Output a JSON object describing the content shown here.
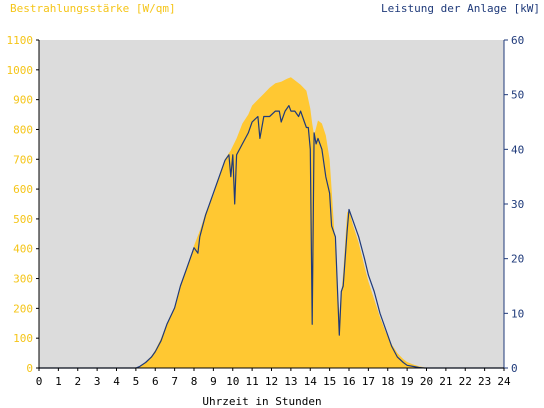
{
  "chart_data": {
    "type": "area",
    "title_left": "Bestrahlungsstärke [W/qm]",
    "title_right": "Leistung der Anlage [kW]",
    "xlabel": "Uhrzeit in Stunden",
    "xlim": [
      0,
      24
    ],
    "x_ticks": [
      "0",
      "1",
      "2",
      "3",
      "4",
      "5",
      "6",
      "7",
      "8",
      "9",
      "10",
      "11",
      "12",
      "13",
      "14",
      "15",
      "16",
      "17",
      "18",
      "19",
      "20",
      "21",
      "22",
      "23",
      "24"
    ],
    "y_left": {
      "lim": [
        0,
        1100
      ],
      "ticks": [
        "0",
        "100",
        "200",
        "300",
        "400",
        "500",
        "600",
        "700",
        "800",
        "900",
        "1000",
        "1100"
      ]
    },
    "y_right": {
      "lim": [
        0,
        60
      ],
      "ticks": [
        "0",
        "10",
        "20",
        "30",
        "40",
        "50",
        "60"
      ]
    },
    "grid": false,
    "colors": {
      "plot_bg": "#dcdcdc",
      "irradiance": "#ffc832",
      "power": "#1f3a7a",
      "left_axis_text": "#f5c518",
      "right_axis_text": "#1f3a7a"
    },
    "series": [
      {
        "axis": "left",
        "style": "filled-area",
        "x": [
          0,
          5.0,
          5.2,
          5.5,
          5.8,
          6.0,
          6.3,
          6.6,
          7.0,
          7.3,
          7.6,
          8.0,
          8.3,
          8.6,
          9.0,
          9.3,
          9.6,
          9.9,
          10.2,
          10.5,
          10.8,
          11.0,
          11.3,
          11.6,
          11.9,
          12.2,
          12.5,
          12.8,
          13.0,
          13.2,
          13.5,
          13.8,
          14.0,
          14.1,
          14.2,
          14.4,
          14.6,
          14.8,
          15.0,
          15.1,
          15.3,
          15.5,
          15.7,
          15.9,
          16.0,
          16.2,
          16.5,
          16.8,
          17.0,
          17.3,
          17.6,
          17.9,
          18.2,
          18.5,
          18.8,
          19.0,
          19.3,
          19.6,
          19.9,
          20.1,
          24
        ],
        "y": [
          0,
          0,
          5,
          20,
          40,
          60,
          100,
          150,
          200,
          270,
          330,
          410,
          460,
          520,
          580,
          640,
          700,
          730,
          770,
          820,
          850,
          880,
          900,
          920,
          940,
          955,
          960,
          970,
          975,
          965,
          950,
          930,
          870,
          820,
          780,
          830,
          820,
          780,
          700,
          600,
          400,
          180,
          320,
          520,
          530,
          480,
          420,
          340,
          290,
          230,
          170,
          120,
          80,
          50,
          30,
          20,
          12,
          6,
          2,
          0,
          0
        ]
      },
      {
        "axis": "right",
        "style": "line",
        "x": [
          0,
          5.0,
          5.2,
          5.5,
          5.8,
          6.0,
          6.3,
          6.6,
          7.0,
          7.3,
          7.6,
          8.0,
          8.2,
          8.3,
          8.6,
          9.0,
          9.3,
          9.6,
          9.8,
          9.9,
          10.0,
          10.1,
          10.2,
          10.5,
          10.8,
          11.0,
          11.3,
          11.4,
          11.6,
          11.9,
          12.2,
          12.4,
          12.5,
          12.7,
          12.9,
          13.0,
          13.2,
          13.4,
          13.5,
          13.6,
          13.7,
          13.8,
          13.9,
          14.0,
          14.1,
          14.2,
          14.3,
          14.4,
          14.6,
          14.8,
          15.0,
          15.1,
          15.3,
          15.5,
          15.6,
          15.7,
          15.9,
          16.0,
          16.2,
          16.5,
          16.8,
          17.0,
          17.3,
          17.6,
          17.9,
          18.2,
          18.5,
          18.8,
          19.0,
          19.3,
          19.6,
          19.9,
          20.1,
          24
        ],
        "y": [
          0,
          0,
          0.3,
          1,
          2,
          3,
          5,
          8,
          11,
          15,
          18,
          22,
          21,
          24,
          28,
          32,
          35,
          38,
          39,
          35,
          39,
          30,
          39,
          41,
          43,
          45,
          46,
          42,
          46,
          46,
          47,
          47,
          45,
          47,
          48,
          47,
          47,
          46,
          47,
          46,
          45,
          44,
          44,
          40,
          8,
          43,
          41,
          42,
          40,
          35,
          32,
          26,
          24,
          6,
          14,
          15,
          25,
          29,
          27,
          24,
          20,
          17,
          14,
          10,
          7,
          4,
          2,
          1,
          0.5,
          0.3,
          0.1,
          0,
          0,
          0
        ]
      }
    ]
  }
}
